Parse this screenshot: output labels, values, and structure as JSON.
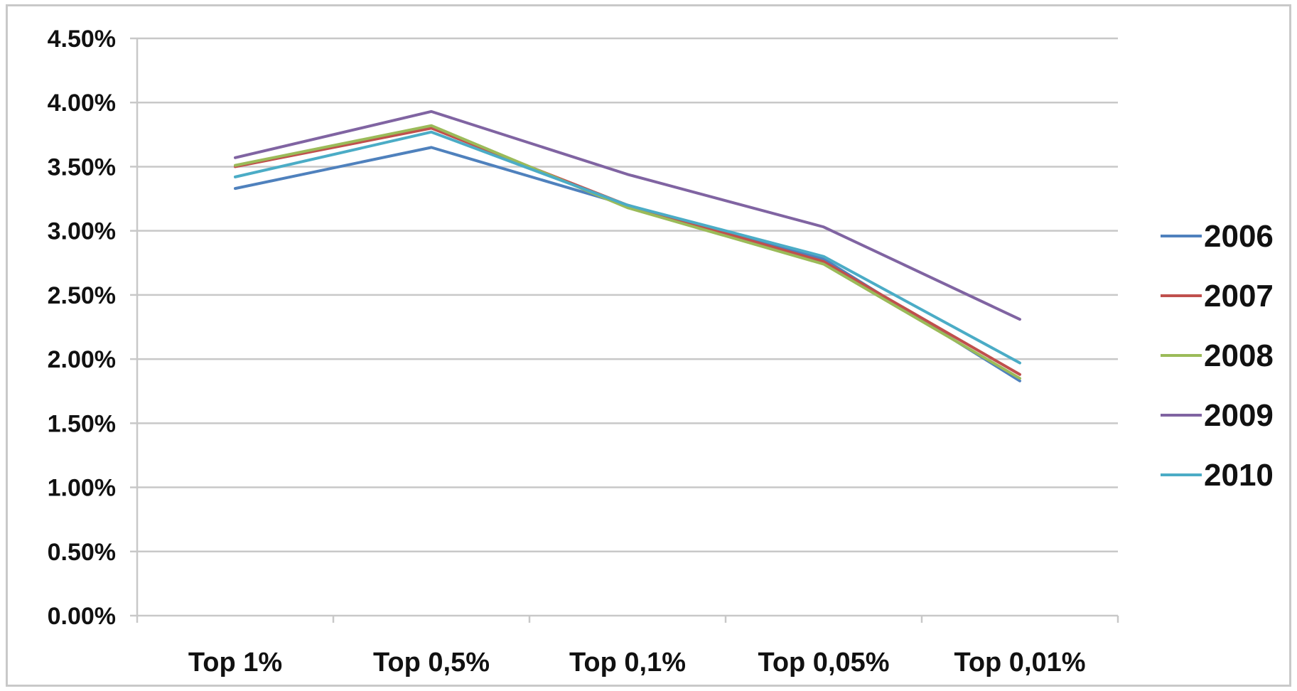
{
  "chart_data": {
    "type": "line",
    "title": "",
    "xlabel": "",
    "ylabel": "",
    "categories": [
      "Top 1%",
      "Top 0,5%",
      "Top 0,1%",
      "Top 0,05%",
      "Top 0,01%"
    ],
    "ylim": [
      0,
      0.045
    ],
    "yticks": [
      0,
      0.005,
      0.01,
      0.015,
      0.02,
      0.025,
      0.03,
      0.035,
      0.04,
      0.045
    ],
    "ytick_labels": [
      "0.00%",
      "0.50%",
      "1.00%",
      "1.50%",
      "2.00%",
      "2.50%",
      "3.00%",
      "3.50%",
      "4.00%",
      "4.50%"
    ],
    "grid": true,
    "legend_position": "right",
    "series": [
      {
        "name": "2006",
        "color": "#4F81BD",
        "values": [
          0.0333,
          0.0365,
          0.032,
          0.0278,
          0.0183
        ]
      },
      {
        "name": "2007",
        "color": "#C0504D",
        "values": [
          0.035,
          0.038,
          0.032,
          0.0276,
          0.0188
        ]
      },
      {
        "name": "2008",
        "color": "#9BBB59",
        "values": [
          0.0351,
          0.0382,
          0.0318,
          0.0274,
          0.0185
        ]
      },
      {
        "name": "2009",
        "color": "#8064A2",
        "values": [
          0.0357,
          0.0393,
          0.0344,
          0.0303,
          0.0231
        ]
      },
      {
        "name": "2010",
        "color": "#4BACC6",
        "values": [
          0.0342,
          0.0377,
          0.032,
          0.028,
          0.0197
        ]
      }
    ]
  }
}
